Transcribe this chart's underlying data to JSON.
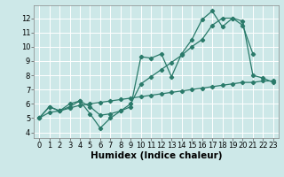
{
  "bg_color": "#cde8e8",
  "grid_color": "#ffffff",
  "line_color": "#2a7a6a",
  "marker": "D",
  "markersize": 2.2,
  "linewidth": 0.9,
  "xlabel": "Humidex (Indice chaleur)",
  "xlabel_fontsize": 7.5,
  "tick_fontsize": 6,
  "xlim": [
    -0.5,
    23.5
  ],
  "ylim": [
    3.6,
    12.9
  ],
  "xticks": [
    0,
    1,
    2,
    3,
    4,
    5,
    6,
    7,
    8,
    9,
    10,
    11,
    12,
    13,
    14,
    15,
    16,
    17,
    18,
    19,
    20,
    21,
    22,
    23
  ],
  "yticks": [
    4,
    5,
    6,
    7,
    8,
    9,
    10,
    11,
    12
  ],
  "series": [
    [
      5.0,
      5.8,
      5.5,
      5.8,
      6.2,
      5.3,
      4.3,
      5.0,
      5.5,
      5.8,
      9.3,
      9.2,
      9.5,
      7.9,
      9.5,
      10.5,
      11.9,
      12.5,
      11.4,
      12.0,
      11.8,
      8.0,
      7.8,
      7.5
    ],
    [
      5.0,
      5.8,
      5.5,
      6.0,
      6.2,
      5.8,
      5.2,
      5.3,
      5.5,
      6.0,
      7.4,
      7.9,
      8.4,
      8.9,
      9.4,
      10.0,
      10.5,
      11.5,
      12.0,
      12.0,
      11.5,
      9.5,
      null,
      null
    ],
    [
      5.0,
      5.4,
      5.5,
      5.7,
      5.9,
      6.0,
      6.1,
      6.2,
      6.3,
      6.4,
      6.5,
      6.6,
      6.7,
      6.8,
      6.9,
      7.0,
      7.1,
      7.2,
      7.3,
      7.4,
      7.5,
      7.5,
      7.6,
      7.6
    ]
  ]
}
